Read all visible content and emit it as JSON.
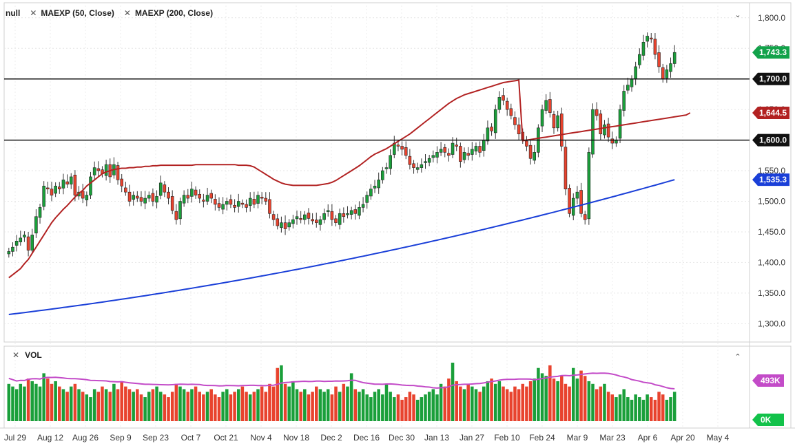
{
  "legend": {
    "symbol": "null",
    "ma1": "MAEXP (50, Close)",
    "ma2": "MAEXP (200, Close)"
  },
  "volume_label": "VOL",
  "colors": {
    "up": "#1a9f3a",
    "down": "#e8432e",
    "ma50": "#b22222",
    "ma200": "#1a3fd8",
    "vol_ma": "#c34bc8",
    "badge_up": "#12a24a",
    "badge_black": "#111111",
    "badge_red": "#b22222",
    "badge_blue": "#1a3fd8",
    "badge_purple": "#c34bc8",
    "badge_green": "#12c24a"
  },
  "chart_data": {
    "type": "candlestick",
    "y_range": [
      1270,
      1820
    ],
    "y_ticks": [
      "1,800.0",
      "1,750.0",
      "1,700.0",
      "1,650.0",
      "1,600.0",
      "1,550.0",
      "1,500.0",
      "1,450.0",
      "1,400.0",
      "1,350.0",
      "1,300.0"
    ],
    "y_tick_values": [
      1800,
      1750,
      1700,
      1650,
      1600,
      1550,
      1500,
      1450,
      1400,
      1350,
      1300
    ],
    "x_ticks": [
      "Jul 29",
      "Aug 12",
      "Aug 26",
      "Sep 9",
      "Sep 23",
      "Oct 7",
      "Oct 21",
      "Nov 4",
      "Nov 18",
      "Dec 2",
      "Dec 16",
      "Dec 30",
      "Jan 13",
      "Jan 27",
      "Feb 10",
      "Feb 24",
      "Mar 9",
      "Mar 23",
      "Apr 6",
      "Apr 20",
      "May 4"
    ],
    "horizontal_lines": [
      1700,
      1600
    ],
    "price_badges": [
      {
        "label": "1,743.3",
        "value": 1743.3,
        "color": "badge_up"
      },
      {
        "label": "1,700.0",
        "value": 1700,
        "color": "badge_black"
      },
      {
        "label": "1,644.5",
        "value": 1644.5,
        "color": "badge_red"
      },
      {
        "label": "1,600.0",
        "value": 1600,
        "color": "badge_black"
      },
      {
        "label": "1,535.3",
        "value": 1535.3,
        "color": "badge_blue"
      }
    ],
    "closes": [
      1418,
      1425,
      1435,
      1440,
      1445,
      1420,
      1445,
      1475,
      1490,
      1525,
      1520,
      1510,
      1525,
      1520,
      1535,
      1528,
      1540,
      1510,
      1515,
      1505,
      1510,
      1540,
      1555,
      1550,
      1545,
      1560,
      1540,
      1560,
      1535,
      1525,
      1515,
      1500,
      1510,
      1505,
      1500,
      1505,
      1510,
      1500,
      1508,
      1530,
      1515,
      1505,
      1485,
      1470,
      1500,
      1510,
      1505,
      1520,
      1510,
      1505,
      1500,
      1510,
      1505,
      1495,
      1490,
      1495,
      1500,
      1495,
      1490,
      1500,
      1495,
      1490,
      1505,
      1495,
      1510,
      1505,
      1500,
      1480,
      1470,
      1460,
      1465,
      1455,
      1465,
      1470,
      1475,
      1470,
      1478,
      1472,
      1468,
      1465,
      1470,
      1480,
      1485,
      1470,
      1465,
      1480,
      1475,
      1480,
      1485,
      1480,
      1490,
      1495,
      1510,
      1520,
      1525,
      1535,
      1550,
      1555,
      1575,
      1595,
      1590,
      1585,
      1575,
      1560,
      1555,
      1555,
      1560,
      1565,
      1570,
      1575,
      1580,
      1585,
      1580,
      1575,
      1595,
      1590,
      1565,
      1580,
      1575,
      1585,
      1590,
      1580,
      1600,
      1620,
      1615,
      1650,
      1670,
      1665,
      1650,
      1640,
      1625,
      1610,
      1600,
      1590,
      1570,
      1580,
      1620,
      1650,
      1665,
      1645,
      1620,
      1640,
      1590,
      1520,
      1480,
      1505,
      1515,
      1480,
      1470,
      1580,
      1650,
      1640,
      1610,
      1625,
      1605,
      1595,
      1600,
      1650,
      1680,
      1690,
      1700,
      1720,
      1740,
      1760,
      1770,
      1765,
      1740,
      1720,
      1700,
      1715,
      1725,
      1743.3
    ],
    "ma50": [
      1375,
      1380,
      1385,
      1390,
      1398,
      1405,
      1415,
      1425,
      1435,
      1445,
      1455,
      1465,
      1473,
      1480,
      1487,
      1493,
      1500,
      1507,
      1513,
      1518,
      1525,
      1530,
      1535,
      1540,
      1545,
      1548,
      1550,
      1552,
      1553,
      1554,
      1554,
      1555,
      1555,
      1556,
      1556,
      1557,
      1557,
      1558,
      1558,
      1559,
      1559,
      1559,
      1559,
      1559,
      1559,
      1559,
      1559,
      1559,
      1560,
      1560,
      1560,
      1560,
      1560,
      1560,
      1560,
      1560,
      1560,
      1560,
      1560,
      1559,
      1559,
      1559,
      1558,
      1556,
      1552,
      1548,
      1544,
      1540,
      1536,
      1533,
      1530,
      1528,
      1527,
      1526,
      1526,
      1526,
      1526,
      1526,
      1526,
      1526,
      1527,
      1528,
      1529,
      1531,
      1534,
      1538,
      1542,
      1546,
      1550,
      1554,
      1558,
      1563,
      1568,
      1573,
      1577,
      1580,
      1583,
      1586,
      1590,
      1594,
      1598,
      1602,
      1606,
      1610,
      1615,
      1620,
      1625,
      1630,
      1635,
      1640,
      1645,
      1650,
      1655,
      1660,
      1664,
      1668,
      1671,
      1674,
      1676,
      1678,
      1680,
      1682,
      1684,
      1686,
      1688,
      1690,
      1692,
      1694,
      1695,
      1696,
      1697,
      1698,
      1599,
      1600,
      1601,
      1602,
      1603,
      1604,
      1605,
      1606,
      1607,
      1608,
      1609,
      1610,
      1611,
      1612,
      1613,
      1614,
      1615,
      1616,
      1617,
      1618,
      1619,
      1620,
      1621,
      1622,
      1623,
      1624,
      1625,
      1626,
      1627,
      1628,
      1629,
      1630,
      1631,
      1632,
      1633,
      1634,
      1635,
      1636,
      1637,
      1638,
      1639,
      1640,
      1641,
      1644.5
    ],
    "ma200_start": 1315,
    "ma200_end": 1535.3,
    "volumes": [
      0.6,
      0.55,
      0.5,
      0.6,
      0.55,
      0.7,
      0.65,
      0.6,
      0.55,
      0.8,
      0.7,
      0.6,
      0.65,
      0.55,
      0.5,
      0.45,
      0.55,
      0.6,
      0.5,
      0.45,
      0.4,
      0.35,
      0.5,
      0.45,
      0.55,
      0.5,
      0.45,
      0.6,
      0.5,
      0.65,
      0.55,
      0.5,
      0.45,
      0.5,
      0.4,
      0.35,
      0.45,
      0.5,
      0.55,
      0.45,
      0.4,
      0.35,
      0.45,
      0.6,
      0.55,
      0.5,
      0.45,
      0.5,
      0.55,
      0.45,
      0.4,
      0.45,
      0.5,
      0.4,
      0.35,
      0.45,
      0.5,
      0.4,
      0.45,
      0.5,
      0.55,
      0.45,
      0.4,
      0.45,
      0.5,
      0.55,
      0.45,
      0.6,
      0.55,
      0.9,
      0.95,
      0.6,
      0.55,
      0.65,
      0.5,
      0.45,
      0.5,
      0.4,
      0.45,
      0.55,
      0.5,
      0.45,
      0.5,
      0.4,
      0.55,
      0.45,
      0.6,
      0.55,
      0.8,
      0.5,
      0.45,
      0.5,
      0.4,
      0.35,
      0.45,
      0.5,
      0.4,
      0.6,
      0.45,
      0.35,
      0.4,
      0.3,
      0.35,
      0.45,
      0.4,
      0.3,
      0.35,
      0.4,
      0.45,
      0.5,
      0.4,
      0.6,
      0.55,
      0.7,
      1.0,
      0.65,
      0.55,
      0.5,
      0.6,
      0.55,
      0.5,
      0.45,
      0.55,
      0.65,
      0.7,
      0.6,
      0.65,
      0.55,
      0.5,
      0.45,
      0.55,
      0.5,
      0.6,
      0.55,
      0.65,
      0.7,
      0.9,
      0.8,
      0.75,
      0.95,
      0.7,
      0.65,
      0.75,
      0.6,
      0.55,
      0.9,
      0.7,
      0.85,
      0.75,
      0.65,
      0.6,
      0.5,
      0.55,
      0.6,
      0.45,
      0.4,
      0.35,
      0.4,
      0.5,
      0.35,
      0.3,
      0.4,
      0.35,
      0.3,
      0.4,
      0.35,
      0.3,
      0.45,
      0.4,
      0.3,
      0.35,
      0.45,
      0.4,
      0.35,
      0.45,
      0.4,
      0.35,
      0.4
    ],
    "volume_badges": [
      {
        "label": "493K",
        "color": "badge_purple"
      },
      {
        "label": "0K",
        "color": "badge_green"
      }
    ]
  }
}
